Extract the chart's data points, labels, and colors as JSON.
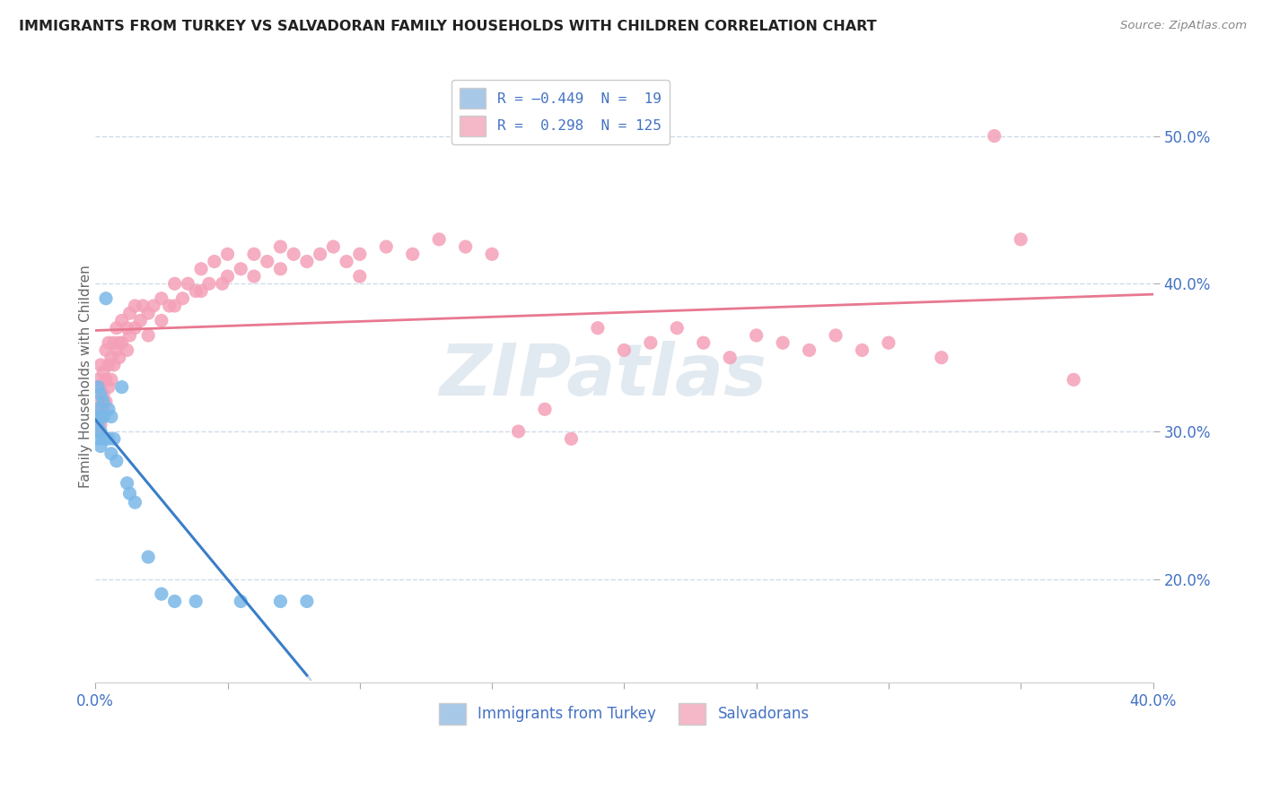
{
  "title": "IMMIGRANTS FROM TURKEY VS SALVADORAN FAMILY HOUSEHOLDS WITH CHILDREN CORRELATION CHART",
  "source": "Source: ZipAtlas.com",
  "ylabel": "Family Households with Children",
  "ytick_values": [
    0.2,
    0.3,
    0.4,
    0.5
  ],
  "xlim": [
    0.0,
    0.4
  ],
  "ylim": [
    0.13,
    0.545
  ],
  "turkey_points": [
    [
      0.001,
      0.33
    ],
    [
      0.001,
      0.315
    ],
    [
      0.001,
      0.305
    ],
    [
      0.001,
      0.295
    ],
    [
      0.002,
      0.325
    ],
    [
      0.002,
      0.31
    ],
    [
      0.002,
      0.3
    ],
    [
      0.002,
      0.29
    ],
    [
      0.003,
      0.32
    ],
    [
      0.003,
      0.31
    ],
    [
      0.003,
      0.295
    ],
    [
      0.004,
      0.39
    ],
    [
      0.005,
      0.315
    ],
    [
      0.005,
      0.295
    ],
    [
      0.006,
      0.31
    ],
    [
      0.006,
      0.285
    ],
    [
      0.007,
      0.295
    ],
    [
      0.008,
      0.28
    ],
    [
      0.01,
      0.33
    ],
    [
      0.012,
      0.265
    ],
    [
      0.013,
      0.258
    ],
    [
      0.015,
      0.252
    ],
    [
      0.02,
      0.215
    ],
    [
      0.025,
      0.19
    ],
    [
      0.03,
      0.185
    ],
    [
      0.038,
      0.185
    ],
    [
      0.055,
      0.185
    ],
    [
      0.07,
      0.185
    ],
    [
      0.08,
      0.185
    ]
  ],
  "salvadoran_points": [
    [
      0.001,
      0.335
    ],
    [
      0.001,
      0.32
    ],
    [
      0.001,
      0.31
    ],
    [
      0.001,
      0.3
    ],
    [
      0.002,
      0.345
    ],
    [
      0.002,
      0.33
    ],
    [
      0.002,
      0.315
    ],
    [
      0.002,
      0.305
    ],
    [
      0.003,
      0.34
    ],
    [
      0.003,
      0.325
    ],
    [
      0.003,
      0.315
    ],
    [
      0.004,
      0.355
    ],
    [
      0.004,
      0.335
    ],
    [
      0.004,
      0.32
    ],
    [
      0.005,
      0.36
    ],
    [
      0.005,
      0.345
    ],
    [
      0.005,
      0.33
    ],
    [
      0.006,
      0.35
    ],
    [
      0.006,
      0.335
    ],
    [
      0.007,
      0.36
    ],
    [
      0.007,
      0.345
    ],
    [
      0.008,
      0.37
    ],
    [
      0.008,
      0.355
    ],
    [
      0.009,
      0.36
    ],
    [
      0.009,
      0.35
    ],
    [
      0.01,
      0.375
    ],
    [
      0.01,
      0.36
    ],
    [
      0.012,
      0.37
    ],
    [
      0.012,
      0.355
    ],
    [
      0.013,
      0.38
    ],
    [
      0.013,
      0.365
    ],
    [
      0.015,
      0.385
    ],
    [
      0.015,
      0.37
    ],
    [
      0.017,
      0.375
    ],
    [
      0.018,
      0.385
    ],
    [
      0.02,
      0.38
    ],
    [
      0.02,
      0.365
    ],
    [
      0.022,
      0.385
    ],
    [
      0.025,
      0.39
    ],
    [
      0.025,
      0.375
    ],
    [
      0.028,
      0.385
    ],
    [
      0.03,
      0.4
    ],
    [
      0.03,
      0.385
    ],
    [
      0.033,
      0.39
    ],
    [
      0.035,
      0.4
    ],
    [
      0.038,
      0.395
    ],
    [
      0.04,
      0.41
    ],
    [
      0.04,
      0.395
    ],
    [
      0.043,
      0.4
    ],
    [
      0.045,
      0.415
    ],
    [
      0.048,
      0.4
    ],
    [
      0.05,
      0.42
    ],
    [
      0.05,
      0.405
    ],
    [
      0.055,
      0.41
    ],
    [
      0.06,
      0.42
    ],
    [
      0.06,
      0.405
    ],
    [
      0.065,
      0.415
    ],
    [
      0.07,
      0.425
    ],
    [
      0.07,
      0.41
    ],
    [
      0.075,
      0.42
    ],
    [
      0.08,
      0.415
    ],
    [
      0.085,
      0.42
    ],
    [
      0.09,
      0.425
    ],
    [
      0.095,
      0.415
    ],
    [
      0.1,
      0.42
    ],
    [
      0.1,
      0.405
    ],
    [
      0.11,
      0.425
    ],
    [
      0.12,
      0.42
    ],
    [
      0.13,
      0.43
    ],
    [
      0.14,
      0.425
    ],
    [
      0.15,
      0.42
    ],
    [
      0.16,
      0.3
    ],
    [
      0.17,
      0.315
    ],
    [
      0.18,
      0.295
    ],
    [
      0.19,
      0.37
    ],
    [
      0.2,
      0.355
    ],
    [
      0.21,
      0.36
    ],
    [
      0.22,
      0.37
    ],
    [
      0.23,
      0.36
    ],
    [
      0.24,
      0.35
    ],
    [
      0.25,
      0.365
    ],
    [
      0.26,
      0.36
    ],
    [
      0.27,
      0.355
    ],
    [
      0.28,
      0.365
    ],
    [
      0.29,
      0.355
    ],
    [
      0.3,
      0.36
    ],
    [
      0.32,
      0.35
    ],
    [
      0.34,
      0.5
    ],
    [
      0.35,
      0.43
    ],
    [
      0.37,
      0.335
    ]
  ],
  "turkey_color": "#7ab8e8",
  "salvadoran_color": "#f4a0b8",
  "turkey_line_color": "#3a7ec8",
  "salvadoran_line_color": "#e87890",
  "trend_dashed_color": "#b8d0e8",
  "background_color": "#ffffff",
  "grid_color": "#d0dce8",
  "watermark_color": "#d0dce8",
  "legend_box_color_1": "#a8c8e8",
  "legend_box_color_2": "#f4b8c8",
  "legend_text_color": "#4472c4",
  "axis_text_color": "#4472c4",
  "title_color": "#222222",
  "source_color": "#888888",
  "ylabel_color": "#666666"
}
